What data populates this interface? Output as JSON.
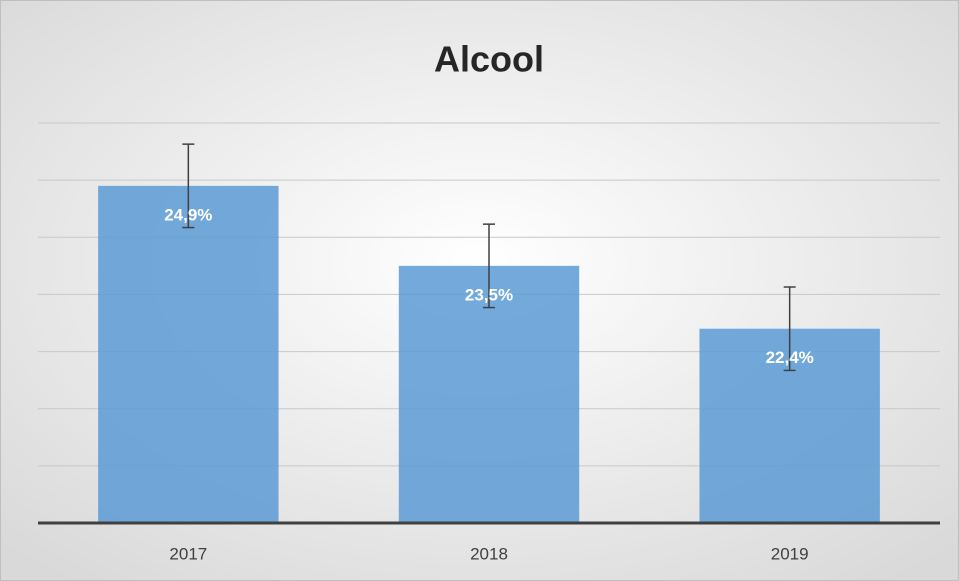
{
  "chart_data": {
    "type": "bar",
    "title": "Alcool",
    "categories": [
      "2017",
      "2018",
      "2019"
    ],
    "values": [
      24.9,
      23.5,
      22.4
    ],
    "value_labels": [
      "24,9%",
      "23,5%",
      "22,4%"
    ],
    "errors": [
      0.73,
      0.73,
      0.73
    ],
    "color": "#5b9bd5",
    "ylim": [
      19,
      26
    ],
    "yticks": [
      19,
      20,
      21,
      22,
      23,
      24,
      25,
      26
    ],
    "grid": true
  }
}
